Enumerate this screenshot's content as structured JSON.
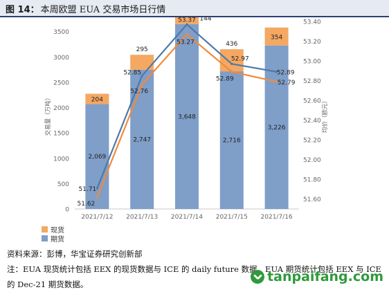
{
  "header": {
    "figure_label": "图 14：",
    "title": "本周欧盟 EUA 交易市场日行情"
  },
  "chart_data": {
    "type": "bar",
    "categories": [
      "2021/7/12",
      "2021/7/13",
      "2021/7/14",
      "2021/7/15",
      "2021/7/16"
    ],
    "series": [
      {
        "name": "期货",
        "kind": "stacked-bar",
        "axis": "left",
        "values": [
          2069,
          2747,
          3648,
          2716,
          3226
        ],
        "color": "#7f9ec8"
      },
      {
        "name": "现货",
        "kind": "stacked-bar",
        "axis": "left",
        "values": [
          204,
          295,
          144,
          436,
          354
        ],
        "color": "#f4a862"
      },
      {
        "kind": "line",
        "axis": "right",
        "values": [
          51.71,
          52.85,
          53.37,
          52.97,
          52.89
        ],
        "color": "#4e79a7"
      },
      {
        "kind": "line",
        "axis": "right",
        "values": [
          51.62,
          52.76,
          53.27,
          52.89,
          52.79
        ],
        "color": "#f08a3c"
      }
    ],
    "ylabel": "交易量（万吨）",
    "y2label": "均价（欧元）",
    "ylim": [
      0,
      3700
    ],
    "y_ticks": [
      0,
      500,
      1000,
      1500,
      2000,
      2500,
      3000,
      3500
    ],
    "y2lim": [
      51.5,
      53.4
    ],
    "y2_ticks": [
      51.6,
      51.8,
      52.0,
      52.2,
      52.4,
      52.6,
      52.8,
      53.0,
      53.2,
      53.4
    ],
    "y_tick_labels": [
      "0",
      "500",
      "1000",
      "1500",
      "2000",
      "2500",
      "3000",
      "3500"
    ],
    "y2_tick_labels": [
      "51.60",
      "51.80",
      "52.00",
      "52.20",
      "52.40",
      "52.60",
      "52.80",
      "53.00",
      "53.20",
      "53.40"
    ],
    "futures_labels": [
      "2,069",
      "2,747",
      "3,648",
      "2,716",
      "3,226"
    ],
    "spot_labels": [
      "204",
      "295",
      "144",
      "436",
      "354"
    ],
    "line1_labels": [
      "51.71",
      "52.85",
      "53.37",
      "52.97",
      "52.89"
    ],
    "line2_labels": [
      "51.62",
      "52.76",
      "53.27",
      "52.89",
      "52.79"
    ],
    "grid": false,
    "legend_position": "bottom-left"
  },
  "legend": {
    "spot_label": "现货",
    "futures_label": "期货",
    "spot_color": "#f4a862",
    "futures_color": "#7f9ec8"
  },
  "notes": {
    "source": "资料来源：彭博，华宝证券研究创新部",
    "note": "注：EUA 现货统计包括 EEX 的现货数据与 ICE 的 daily future 数据，EUA 期货统计包括 EEX 与 ICE 的 Dec-21 期货数据。"
  },
  "watermark": {
    "text": "tanpaifang.com",
    "icon": "leaf-logo-icon"
  }
}
